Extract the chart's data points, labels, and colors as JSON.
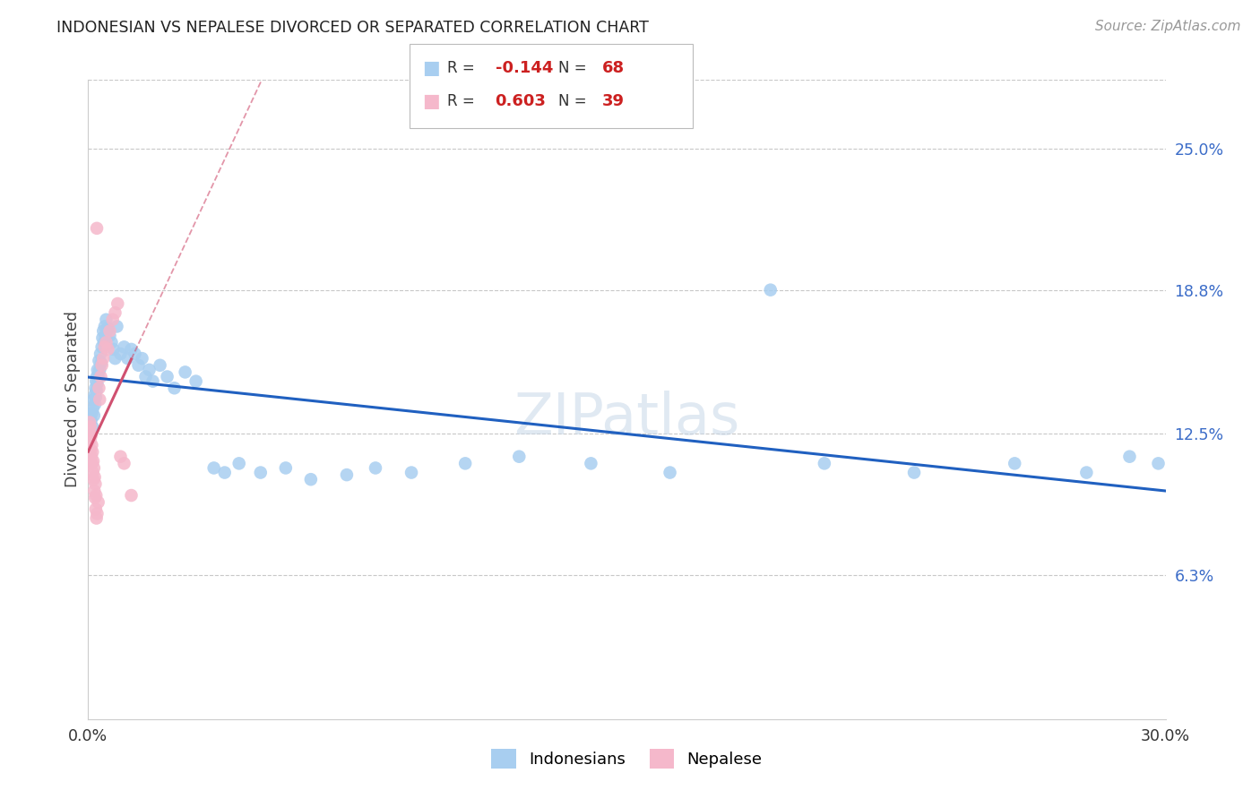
{
  "title": "INDONESIAN VS NEPALESE DIVORCED OR SEPARATED CORRELATION CHART",
  "source": "Source: ZipAtlas.com",
  "ylabel": "Divorced or Separated",
  "xlim": [
    0.0,
    0.3
  ],
  "ylim": [
    0.0,
    0.28
  ],
  "ytick_vals": [
    0.063,
    0.125,
    0.188,
    0.25
  ],
  "ytick_labels": [
    "6.3%",
    "12.5%",
    "18.8%",
    "25.0%"
  ],
  "xtick_vals": [
    0.0,
    0.3
  ],
  "xtick_labels": [
    "0.0%",
    "30.0%"
  ],
  "legend_1": "Indonesians",
  "legend_2": "Nepalese",
  "r1_text": "-0.144",
  "n1_text": "68",
  "r2_text": "0.603",
  "n2_text": "39",
  "blue_color": "#A8CEF0",
  "pink_color": "#F5B8CB",
  "blue_line_color": "#2060C0",
  "pink_line_color": "#D05070",
  "watermark": "ZIPatlas",
  "blue_x": [
    0.0008,
    0.001,
    0.0012,
    0.0013,
    0.0015,
    0.0016,
    0.0018,
    0.0019,
    0.002,
    0.0021,
    0.0022,
    0.0023,
    0.0024,
    0.0025,
    0.0026,
    0.0028,
    0.003,
    0.0032,
    0.0034,
    0.0036,
    0.0038,
    0.004,
    0.0042,
    0.0044,
    0.0046,
    0.0048,
    0.005,
    0.0055,
    0.006,
    0.0065,
    0.007,
    0.0075,
    0.008,
    0.009,
    0.01,
    0.011,
    0.012,
    0.013,
    0.014,
    0.015,
    0.016,
    0.017,
    0.018,
    0.02,
    0.022,
    0.024,
    0.027,
    0.03,
    0.035,
    0.038,
    0.042,
    0.048,
    0.055,
    0.062,
    0.072,
    0.08,
    0.09,
    0.105,
    0.12,
    0.14,
    0.162,
    0.19,
    0.205,
    0.23,
    0.258,
    0.278,
    0.29,
    0.298
  ],
  "blue_y": [
    0.131,
    0.134,
    0.128,
    0.136,
    0.14,
    0.133,
    0.142,
    0.138,
    0.145,
    0.141,
    0.148,
    0.144,
    0.15,
    0.147,
    0.153,
    0.15,
    0.157,
    0.153,
    0.16,
    0.156,
    0.163,
    0.167,
    0.17,
    0.165,
    0.172,
    0.168,
    0.175,
    0.171,
    0.168,
    0.165,
    0.162,
    0.158,
    0.172,
    0.16,
    0.163,
    0.158,
    0.162,
    0.16,
    0.155,
    0.158,
    0.15,
    0.153,
    0.148,
    0.155,
    0.15,
    0.145,
    0.152,
    0.148,
    0.11,
    0.108,
    0.112,
    0.108,
    0.11,
    0.105,
    0.107,
    0.11,
    0.108,
    0.112,
    0.115,
    0.112,
    0.108,
    0.188,
    0.112,
    0.108,
    0.112,
    0.108,
    0.115,
    0.112
  ],
  "pink_x": [
    0.0003,
    0.0004,
    0.0005,
    0.0006,
    0.0007,
    0.0008,
    0.0009,
    0.001,
    0.0011,
    0.0012,
    0.0013,
    0.0014,
    0.0015,
    0.0016,
    0.0017,
    0.0018,
    0.0019,
    0.002,
    0.0021,
    0.0022,
    0.0023,
    0.0024,
    0.0025,
    0.0028,
    0.003,
    0.0032,
    0.0035,
    0.0038,
    0.0042,
    0.0046,
    0.005,
    0.0055,
    0.006,
    0.0068,
    0.0075,
    0.0082,
    0.009,
    0.01,
    0.012
  ],
  "pink_y": [
    0.126,
    0.13,
    0.122,
    0.128,
    0.118,
    0.124,
    0.115,
    0.12,
    0.112,
    0.117,
    0.108,
    0.113,
    0.105,
    0.11,
    0.1,
    0.106,
    0.097,
    0.103,
    0.092,
    0.098,
    0.088,
    0.215,
    0.09,
    0.095,
    0.145,
    0.14,
    0.15,
    0.155,
    0.158,
    0.163,
    0.165,
    0.162,
    0.17,
    0.175,
    0.178,
    0.182,
    0.115,
    0.112,
    0.098
  ]
}
